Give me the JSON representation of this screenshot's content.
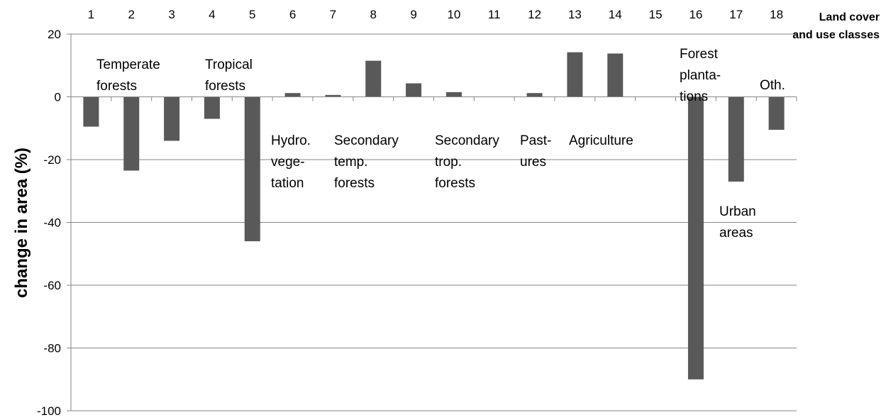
{
  "chart_data": {
    "type": "bar",
    "categories": [
      "1",
      "2",
      "3",
      "4",
      "5",
      "6",
      "7",
      "8",
      "9",
      "10",
      "11",
      "12",
      "13",
      "14",
      "15",
      "16",
      "17",
      "18"
    ],
    "values": [
      -9.5,
      -23.5,
      -14,
      -7,
      -46,
      1.2,
      0.6,
      11.5,
      4.3,
      1.5,
      0,
      1.2,
      14.2,
      13.8,
      0,
      -90,
      -27,
      -10.5
    ],
    "title": "",
    "xlabel": "Land cover and use classes",
    "xlabel_lines": [
      "Land cover",
      "and use classes"
    ],
    "ylabel": "change in area (%)",
    "ylim": [
      -100,
      20
    ],
    "yticks": [
      "20",
      "0",
      "-20",
      "-40",
      "-60",
      "-80",
      "-100"
    ],
    "grid": true,
    "bar_color": "#595959",
    "annotations": [
      {
        "lines": [
          "Temperate",
          "forests"
        ]
      },
      {
        "lines": [
          "Tropical",
          "forests"
        ]
      },
      {
        "lines": [
          "Hydro.",
          "vege-",
          "tation"
        ]
      },
      {
        "lines": [
          "Secondary",
          "temp.",
          "forests"
        ]
      },
      {
        "lines": [
          "Secondary",
          "trop.",
          "forests"
        ]
      },
      {
        "lines": [
          "Past-",
          "ures"
        ]
      },
      {
        "lines": [
          "Agriculture"
        ]
      },
      {
        "lines": [
          "Forest",
          "planta-",
          "tions"
        ]
      },
      {
        "lines": [
          "Urban",
          "areas"
        ]
      },
      {
        "lines": [
          "Oth."
        ]
      }
    ]
  }
}
